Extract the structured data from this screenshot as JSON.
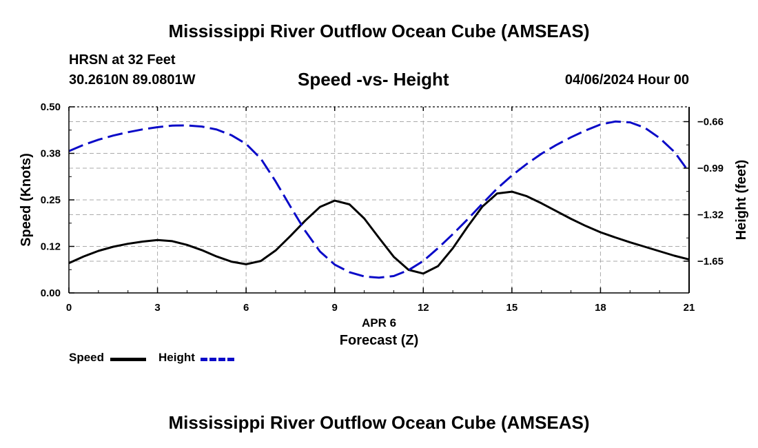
{
  "header": {
    "title": "Mississippi River Outflow Ocean Cube (AMSEAS)",
    "station": "HRSN at 32 Feet",
    "coords": "30.2610N  89.0801W",
    "subtitle": "Speed -vs- Height",
    "datetime": "04/06/2024 Hour 00"
  },
  "footer": {
    "title": "Mississippi River Outflow Ocean Cube (AMSEAS)"
  },
  "legend": {
    "speed_label": "Speed",
    "height_label": "Height"
  },
  "colors": {
    "speed": "#000000",
    "height": "#0a0ac8",
    "grid": "#aaaaaa"
  },
  "chart_data": {
    "type": "line",
    "xlabel": "Forecast (Z)",
    "xsublabel": "APR 6",
    "ylabel": "Speed (Knots)",
    "y2label": "Height (feet)",
    "xlim": [
      0,
      21
    ],
    "ylim": [
      0,
      0.5
    ],
    "y2lim": [
      -1.875,
      -0.555
    ],
    "xticks": [
      0,
      3,
      6,
      9,
      12,
      15,
      18,
      21
    ],
    "xtick_labels": [
      "0",
      "3",
      "6",
      "9",
      "12",
      "15",
      "18",
      "21"
    ],
    "yticks": [
      0,
      0.125,
      0.25,
      0.375,
      0.5
    ],
    "ytick_labels": [
      "0.00",
      "0.12",
      "0.25",
      "0.38",
      "0.50"
    ],
    "y2ticks": [
      -1.65,
      -1.32,
      -0.99,
      -0.66
    ],
    "y2tick_labels": [
      "−1.65",
      "−1.32",
      "−0.99",
      "−0.66"
    ],
    "grid": true,
    "series": [
      {
        "name": "Speed",
        "axis": "left",
        "style": "solid",
        "x": [
          0,
          0.5,
          1,
          1.5,
          2,
          2.5,
          3,
          3.5,
          4,
          4.5,
          5,
          5.5,
          6,
          6.5,
          7,
          7.5,
          8,
          8.5,
          9,
          9.5,
          10,
          10.5,
          11,
          11.5,
          12,
          12.5,
          13,
          13.5,
          14,
          14.5,
          15,
          15.5,
          16,
          16.5,
          17,
          17.5,
          18,
          18.5,
          19,
          19.5,
          20,
          20.5,
          21
        ],
        "values": [
          0.08,
          0.098,
          0.113,
          0.124,
          0.132,
          0.138,
          0.142,
          0.139,
          0.129,
          0.115,
          0.098,
          0.084,
          0.077,
          0.086,
          0.114,
          0.153,
          0.194,
          0.231,
          0.248,
          0.238,
          0.2,
          0.148,
          0.097,
          0.062,
          0.052,
          0.072,
          0.12,
          0.178,
          0.232,
          0.267,
          0.272,
          0.26,
          0.241,
          0.22,
          0.199,
          0.18,
          0.163,
          0.149,
          0.136,
          0.124,
          0.112,
          0.1,
          0.09
        ]
      },
      {
        "name": "Height",
        "axis": "right",
        "style": "dashed",
        "x": [
          0,
          0.5,
          1,
          1.5,
          2,
          2.5,
          3,
          3.5,
          4,
          4.5,
          5,
          5.5,
          6,
          6.5,
          7,
          7.5,
          8,
          8.5,
          9,
          9.5,
          10,
          10.5,
          11,
          11.5,
          12,
          12.5,
          13,
          13.5,
          14,
          14.5,
          15,
          15.5,
          16,
          16.5,
          17,
          17.5,
          18,
          18.5,
          19,
          19.5,
          20,
          20.5,
          21
        ],
        "values": [
          -0.869,
          -0.825,
          -0.788,
          -0.759,
          -0.735,
          -0.715,
          -0.699,
          -0.688,
          -0.687,
          -0.695,
          -0.716,
          -0.756,
          -0.818,
          -0.923,
          -1.084,
          -1.262,
          -1.435,
          -1.581,
          -1.674,
          -1.728,
          -1.758,
          -1.767,
          -1.755,
          -1.713,
          -1.648,
          -1.557,
          -1.458,
          -1.353,
          -1.242,
          -1.135,
          -1.042,
          -0.961,
          -0.888,
          -0.826,
          -0.771,
          -0.722,
          -0.68,
          -0.659,
          -0.665,
          -0.703,
          -0.776,
          -0.874,
          -1.018
        ]
      }
    ]
  }
}
